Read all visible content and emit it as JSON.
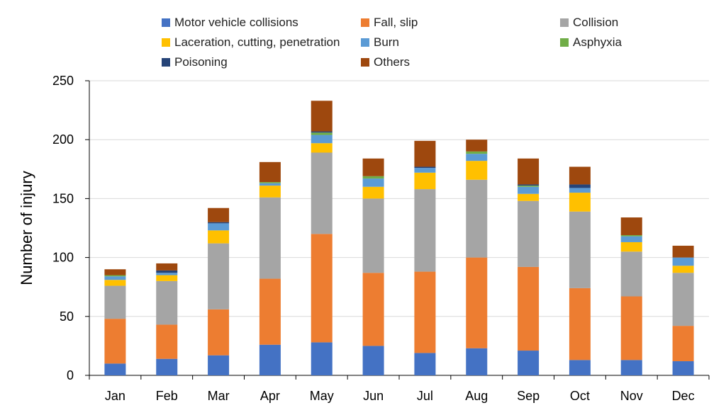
{
  "chart_data": {
    "type": "bar",
    "stacked": true,
    "title": "",
    "xlabel": "",
    "ylabel": "Number of injury",
    "ylim": [
      0,
      250
    ],
    "yticks": [
      0,
      50,
      100,
      150,
      200,
      250
    ],
    "grid": true,
    "legend_position": "top",
    "categories": [
      "Jan",
      "Feb",
      "Mar",
      "Apr",
      "May",
      "Jun",
      "Jul",
      "Aug",
      "Sep",
      "Oct",
      "Nov",
      "Dec"
    ],
    "series": [
      {
        "name": "Motor vehicle collisions",
        "color": "#4472c4",
        "values": [
          10,
          14,
          17,
          26,
          28,
          25,
          19,
          23,
          21,
          13,
          13,
          12
        ]
      },
      {
        "name": "Fall, slip",
        "color": "#ed7d31",
        "values": [
          38,
          29,
          39,
          56,
          92,
          62,
          69,
          77,
          71,
          61,
          54,
          30
        ]
      },
      {
        "name": "Collision",
        "color": "#a5a5a5",
        "values": [
          28,
          37,
          56,
          69,
          69,
          63,
          70,
          66,
          56,
          65,
          38,
          45
        ]
      },
      {
        "name": "Laceration, cutting, penetration",
        "color": "#ffc000",
        "values": [
          5,
          5,
          11,
          10,
          8,
          10,
          14,
          16,
          6,
          16,
          8,
          6
        ]
      },
      {
        "name": "Burn",
        "color": "#5b9bd5",
        "values": [
          3,
          2,
          6,
          2,
          7,
          7,
          4,
          6,
          6,
          4,
          5,
          7
        ]
      },
      {
        "name": "Asphyxia",
        "color": "#70ad47",
        "values": [
          1,
          0,
          0,
          1,
          2,
          2,
          0,
          2,
          1,
          0,
          1,
          0
        ]
      },
      {
        "name": "Poisoning",
        "color": "#264478",
        "values": [
          0,
          2,
          1,
          0,
          1,
          0,
          1,
          0,
          1,
          3,
          0,
          0
        ]
      },
      {
        "name": "Others",
        "color": "#9e480e",
        "values": [
          5,
          6,
          12,
          17,
          26,
          15,
          22,
          10,
          22,
          15,
          15,
          10
        ]
      }
    ]
  }
}
